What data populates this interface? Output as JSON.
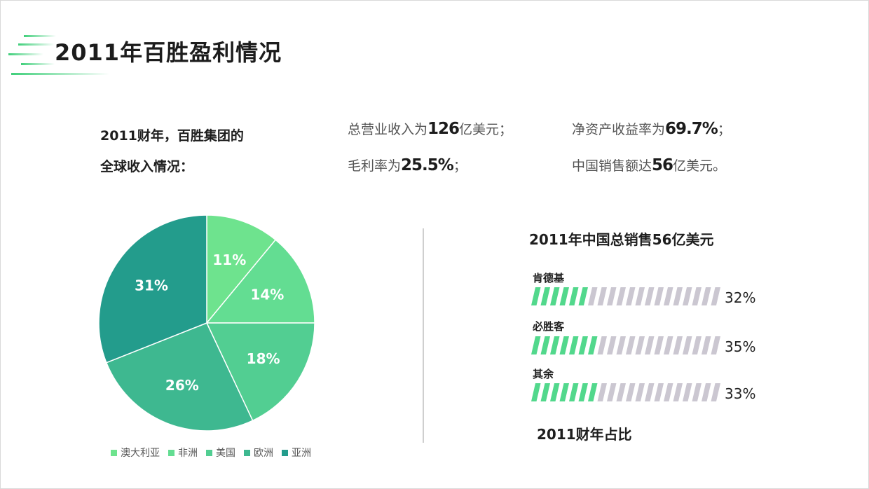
{
  "page": {
    "title": "2011年百胜盈利情况"
  },
  "intro": {
    "line1": "2011财年，百胜集团的",
    "line2": "全球收入情况："
  },
  "stats": [
    {
      "pre": "总营业收入为",
      "value": "126",
      "post": "亿美元；"
    },
    {
      "pre": "净资产收益率为",
      "value": "69.7%",
      "post": "；"
    },
    {
      "pre": "毛利率为",
      "value": "25.5%",
      "post": "；"
    },
    {
      "pre": "中国销售额达",
      "value": "56",
      "post": "亿美元。"
    }
  ],
  "colors": {
    "pie": [
      "#6EE38E",
      "#63DD92",
      "#52CE92",
      "#3EB890",
      "#239C8C"
    ],
    "bar_fill": "#52D88C",
    "bar_empty": "#CBC7D1"
  },
  "chart_data": [
    {
      "type": "pie",
      "title": "",
      "labels": [
        "澳大利亚",
        "非洲",
        "美国",
        "欧洲",
        "亚洲"
      ],
      "values": [
        11,
        14,
        18,
        26,
        31
      ],
      "data_labels": [
        "11%",
        "14%",
        "18%",
        "26%",
        "31%"
      ],
      "legend_position": "bottom"
    },
    {
      "type": "bar",
      "title": "2011年中国总销售56亿美元",
      "subtitle": "2011财年占比",
      "categories": [
        "肯德基",
        "必胜客",
        "其余"
      ],
      "values": [
        32,
        35,
        33
      ],
      "data_labels": [
        "32%",
        "35%",
        "33%"
      ],
      "ylim": [
        0,
        100
      ]
    }
  ]
}
